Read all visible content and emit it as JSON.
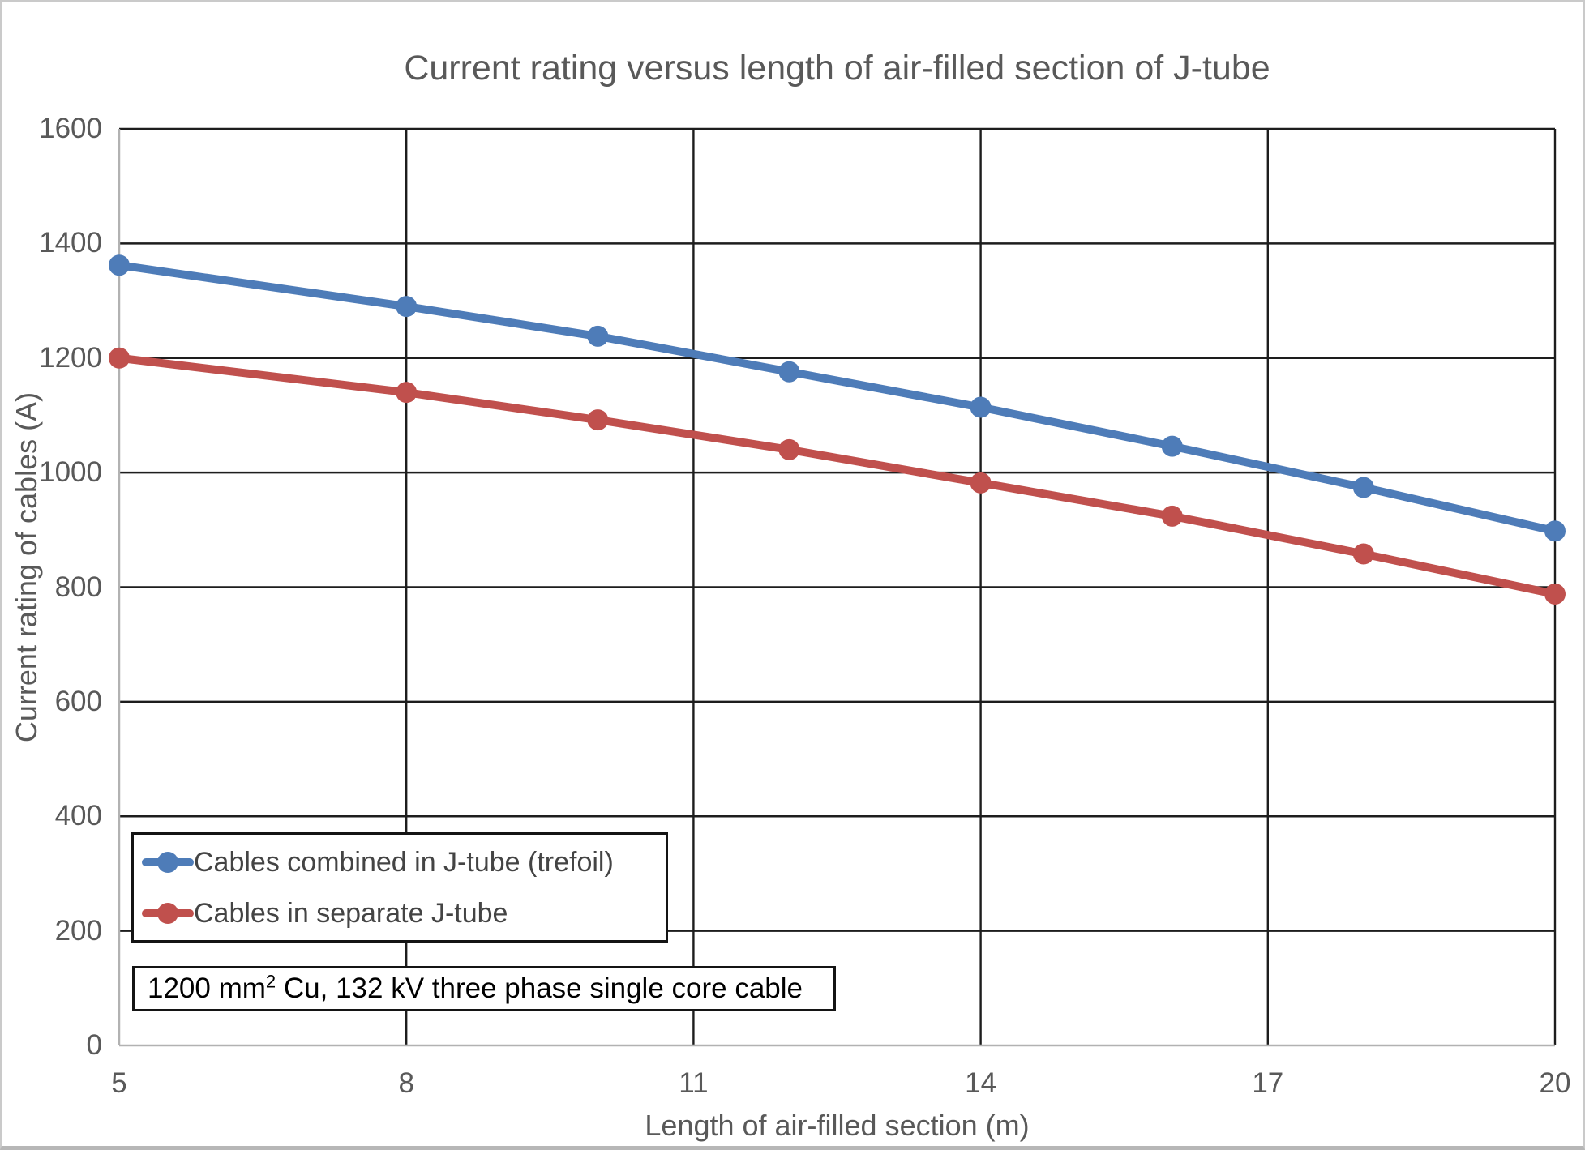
{
  "colors": {
    "grid": "#1d1d1d",
    "axis": "#b2b2b2",
    "tick_text": "#595959",
    "title_text": "#595959",
    "legend_text": "#444444",
    "annotation_text": "#000000",
    "series_blue": "#4E7CB8",
    "series_red": "#C0504D"
  },
  "chart_data": {
    "type": "line",
    "title": "Current rating versus length of air-filled section of J-tube",
    "xlabel": "Length of air-filled section (m)",
    "ylabel": "Current rating of cables (A)",
    "x": [
      5,
      8,
      10,
      12,
      14,
      16,
      18,
      20
    ],
    "series": [
      {
        "name": "Cables combined in J-tube (trefoil)",
        "color": "#4E7CB8",
        "marker": "circle",
        "values": [
          1362,
          1290,
          1238,
          1176,
          1114,
          1046,
          974,
          898
        ]
      },
      {
        "name": "Cables in separate J-tube",
        "color": "#C0504D",
        "marker": "circle",
        "values": [
          1200,
          1140,
          1092,
          1040,
          982,
          924,
          858,
          788
        ]
      }
    ],
    "xlim": [
      5,
      20
    ],
    "ylim": [
      0,
      1600
    ],
    "x_ticks": [
      5,
      8,
      11,
      14,
      17,
      20
    ],
    "y_ticks": [
      0,
      200,
      400,
      600,
      800,
      1000,
      1200,
      1400,
      1600
    ],
    "grid": true,
    "legend_position": "inside bottom-left",
    "annotation": {
      "prefix": "1200 mm",
      "sup": "2",
      "suffix": " Cu, 132 kV three phase single core cable"
    }
  }
}
